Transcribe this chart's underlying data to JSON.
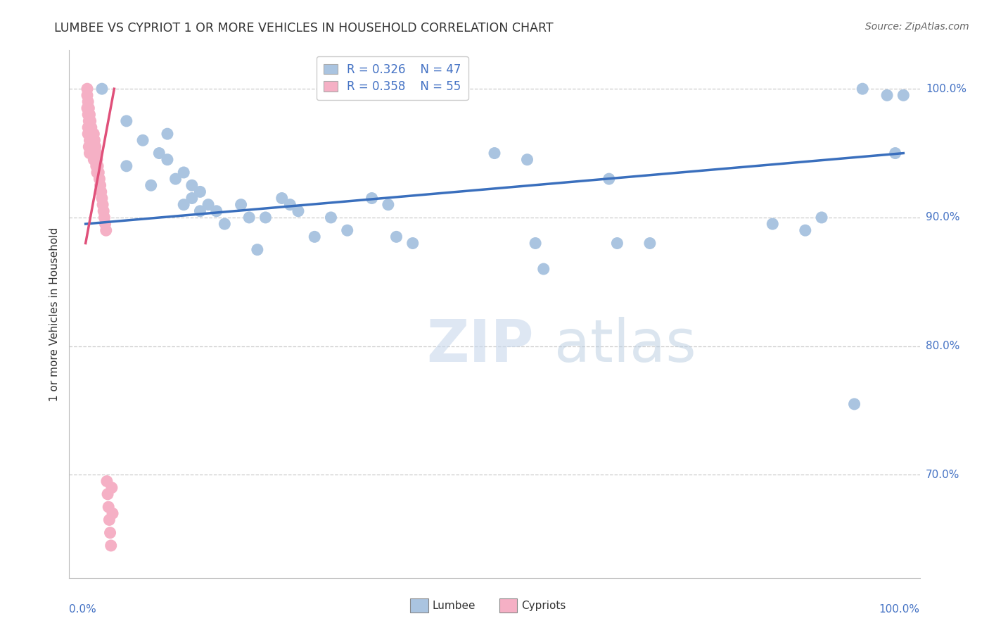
{
  "title": "LUMBEE VS CYPRIOT 1 OR MORE VEHICLES IN HOUSEHOLD CORRELATION CHART",
  "source": "Source: ZipAtlas.com",
  "ylabel": "1 or more Vehicles in Household",
  "watermark": "ZIPatlas",
  "lumbee_R": 0.326,
  "lumbee_N": 47,
  "cypriot_R": 0.358,
  "cypriot_N": 55,
  "yticks": [
    70.0,
    80.0,
    90.0,
    100.0
  ],
  "ylim": [
    62.0,
    103.0
  ],
  "xlim": [
    -0.02,
    1.02
  ],
  "lumbee_color": "#aac4e0",
  "lumbee_line_color": "#3a6fbd",
  "cypriot_color": "#f5b0c5",
  "cypriot_line_color": "#e0507a",
  "lumbee_x": [
    0.02,
    0.05,
    0.05,
    0.07,
    0.08,
    0.09,
    0.1,
    0.1,
    0.11,
    0.12,
    0.12,
    0.13,
    0.13,
    0.14,
    0.14,
    0.15,
    0.16,
    0.17,
    0.19,
    0.2,
    0.21,
    0.22,
    0.24,
    0.25,
    0.26,
    0.28,
    0.3,
    0.32,
    0.35,
    0.37,
    0.38,
    0.4,
    0.5,
    0.54,
    0.55,
    0.56,
    0.64,
    0.65,
    0.69,
    0.84,
    0.88,
    0.9,
    0.94,
    0.95,
    0.98,
    0.99,
    1.0
  ],
  "lumbee_y": [
    100.0,
    97.5,
    94.0,
    96.0,
    92.5,
    95.0,
    94.5,
    96.5,
    93.0,
    91.0,
    93.5,
    91.5,
    92.5,
    90.5,
    92.0,
    91.0,
    90.5,
    89.5,
    91.0,
    90.0,
    87.5,
    90.0,
    91.5,
    91.0,
    90.5,
    88.5,
    90.0,
    89.0,
    91.5,
    91.0,
    88.5,
    88.0,
    95.0,
    94.5,
    88.0,
    86.0,
    93.0,
    88.0,
    88.0,
    89.5,
    89.0,
    90.0,
    75.5,
    100.0,
    99.5,
    95.0,
    99.5
  ],
  "cypriot_x": [
    0.002,
    0.002,
    0.002,
    0.003,
    0.003,
    0.003,
    0.003,
    0.004,
    0.004,
    0.004,
    0.004,
    0.005,
    0.005,
    0.005,
    0.005,
    0.006,
    0.006,
    0.006,
    0.007,
    0.007,
    0.007,
    0.008,
    0.008,
    0.009,
    0.009,
    0.01,
    0.01,
    0.01,
    0.011,
    0.011,
    0.012,
    0.012,
    0.013,
    0.013,
    0.014,
    0.014,
    0.015,
    0.016,
    0.017,
    0.018,
    0.019,
    0.02,
    0.021,
    0.022,
    0.023,
    0.024,
    0.025,
    0.026,
    0.027,
    0.028,
    0.029,
    0.03,
    0.031,
    0.032,
    0.033
  ],
  "cypriot_y": [
    100.0,
    99.5,
    98.5,
    99.0,
    98.0,
    97.0,
    96.5,
    98.5,
    97.5,
    96.5,
    95.5,
    98.0,
    97.0,
    96.0,
    95.0,
    97.5,
    96.5,
    95.5,
    97.0,
    96.0,
    95.0,
    96.5,
    95.5,
    96.0,
    95.0,
    96.5,
    95.5,
    94.5,
    96.0,
    95.0,
    95.5,
    94.5,
    95.0,
    94.0,
    94.5,
    93.5,
    94.0,
    93.5,
    93.0,
    92.5,
    92.0,
    91.5,
    91.0,
    90.5,
    90.0,
    89.5,
    89.0,
    69.5,
    68.5,
    67.5,
    66.5,
    65.5,
    64.5,
    69.0,
    67.0
  ],
  "background_color": "#ffffff",
  "grid_color": "#cccccc",
  "title_color": "#333333",
  "axis_label_color": "#4472c4",
  "tick_color": "#4472c4"
}
